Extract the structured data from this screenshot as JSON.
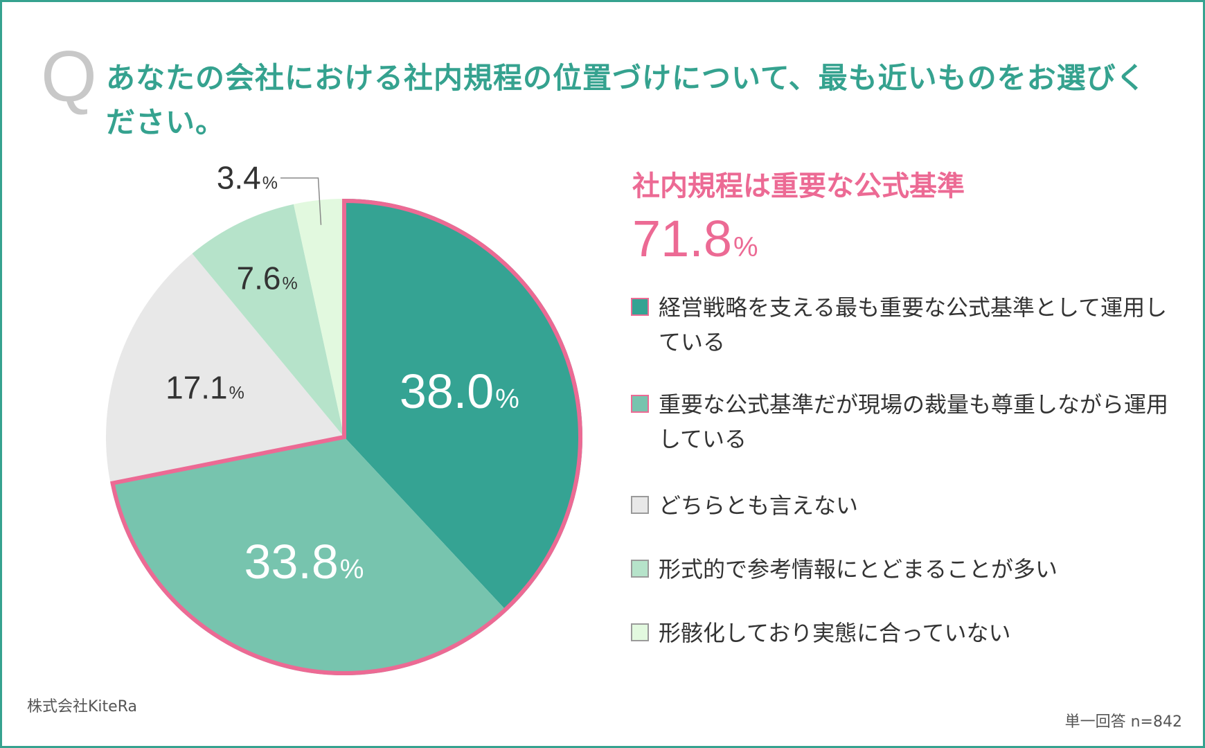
{
  "question": {
    "mark": "Q",
    "text": "あなたの会社における社内規程の位置づけについて、最も近いものをお選びください。"
  },
  "callout": {
    "label": "社内規程は重要な公式基準",
    "value": "71.8",
    "unit": "%"
  },
  "colors": {
    "accent": "#35a28f",
    "highlight": "#ec6a94",
    "text": "#333333"
  },
  "chart_data": {
    "type": "pie",
    "title": "",
    "unit": "%",
    "categories": [
      "経営戦略を支える最も重要な公式基準として運用している",
      "重要な公式基準だが現場の裁量も尊重しながら運用している",
      "どちらとも言えない",
      "形式的で参考情報にとどまることが多い",
      "形骸化しており実態に合っていない"
    ],
    "values": [
      38.0,
      33.8,
      17.1,
      7.6,
      3.4
    ],
    "value_labels": [
      "38.0",
      "33.8",
      "17.1",
      "7.6",
      "3.4"
    ],
    "colors": [
      "#35a393",
      "#77c4ae",
      "#e8e8e8",
      "#b6e3ca",
      "#e2f9df"
    ],
    "label_colors": [
      "#ffffff",
      "#ffffff",
      "#333333",
      "#333333",
      "#333333"
    ],
    "highlight_group": {
      "label": "社内規程は重要な公式基準",
      "value": 71.8,
      "members": [
        0,
        1
      ],
      "outline_color": "#ec6a94"
    },
    "legend_placement": "right",
    "start_angle": "top, clockwise"
  },
  "footer": {
    "source": "株式会社KiteRa",
    "note": "単一回答 n=842"
  }
}
